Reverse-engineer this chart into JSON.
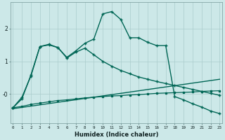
{
  "xlabel": "Humidex (Indice chaleur)",
  "bg_color": "#cce8e8",
  "grid_color": "#aacccc",
  "line_color": "#006655",
  "x_ticks": [
    0,
    1,
    2,
    3,
    4,
    5,
    6,
    7,
    8,
    9,
    10,
    11,
    12,
    13,
    14,
    15,
    16,
    17,
    18,
    19,
    20,
    21,
    22,
    23
  ],
  "ylim": [
    -0.9,
    2.8
  ],
  "xlim": [
    -0.3,
    23.3
  ],
  "line1_straight": {
    "x": [
      0,
      23
    ],
    "y": [
      -0.45,
      0.45
    ],
    "marker": "None",
    "linewidth": 1.0
  },
  "line2_flat": {
    "x": [
      0,
      1,
      2,
      3,
      4,
      5,
      6,
      7,
      8,
      9,
      10,
      11,
      12,
      13,
      14,
      15,
      16,
      17,
      18,
      19,
      20,
      21,
      22,
      23
    ],
    "y": [
      -0.42,
      -0.38,
      -0.32,
      -0.28,
      -0.24,
      -0.2,
      -0.18,
      -0.15,
      -0.12,
      -0.1,
      -0.08,
      -0.06,
      -0.05,
      -0.03,
      -0.02,
      0.0,
      0.02,
      0.03,
      0.04,
      0.05,
      0.06,
      0.08,
      0.09,
      0.1
    ],
    "marker": "s",
    "markersize": 1.5,
    "linewidth": 0.9
  },
  "line3_mid": {
    "x": [
      0,
      1,
      2,
      3,
      4,
      5,
      6,
      7,
      8,
      9,
      10,
      11,
      12,
      13,
      14,
      15,
      16,
      17,
      18,
      19,
      20,
      21,
      22,
      23
    ],
    "y": [
      -0.42,
      -0.15,
      0.58,
      1.45,
      1.5,
      1.42,
      1.1,
      1.28,
      1.4,
      1.2,
      1.0,
      0.85,
      0.72,
      0.62,
      0.52,
      0.45,
      0.38,
      0.32,
      0.26,
      0.2,
      0.14,
      0.08,
      0.02,
      -0.04
    ],
    "marker": "+",
    "markersize": 3.5,
    "linewidth": 1.0
  },
  "line4_peak": {
    "x": [
      0,
      1,
      2,
      3,
      4,
      5,
      6,
      7,
      8,
      9,
      10,
      11,
      12,
      13,
      14,
      15,
      16,
      17,
      18,
      19,
      20,
      21,
      22,
      23
    ],
    "y": [
      -0.42,
      -0.1,
      0.55,
      1.45,
      1.52,
      1.42,
      1.12,
      1.32,
      1.55,
      1.68,
      2.45,
      2.52,
      2.28,
      1.72,
      1.72,
      1.58,
      1.48,
      1.48,
      -0.08,
      -0.18,
      -0.3,
      -0.4,
      -0.52,
      -0.6
    ],
    "marker": "+",
    "markersize": 3.5,
    "linewidth": 1.0
  }
}
